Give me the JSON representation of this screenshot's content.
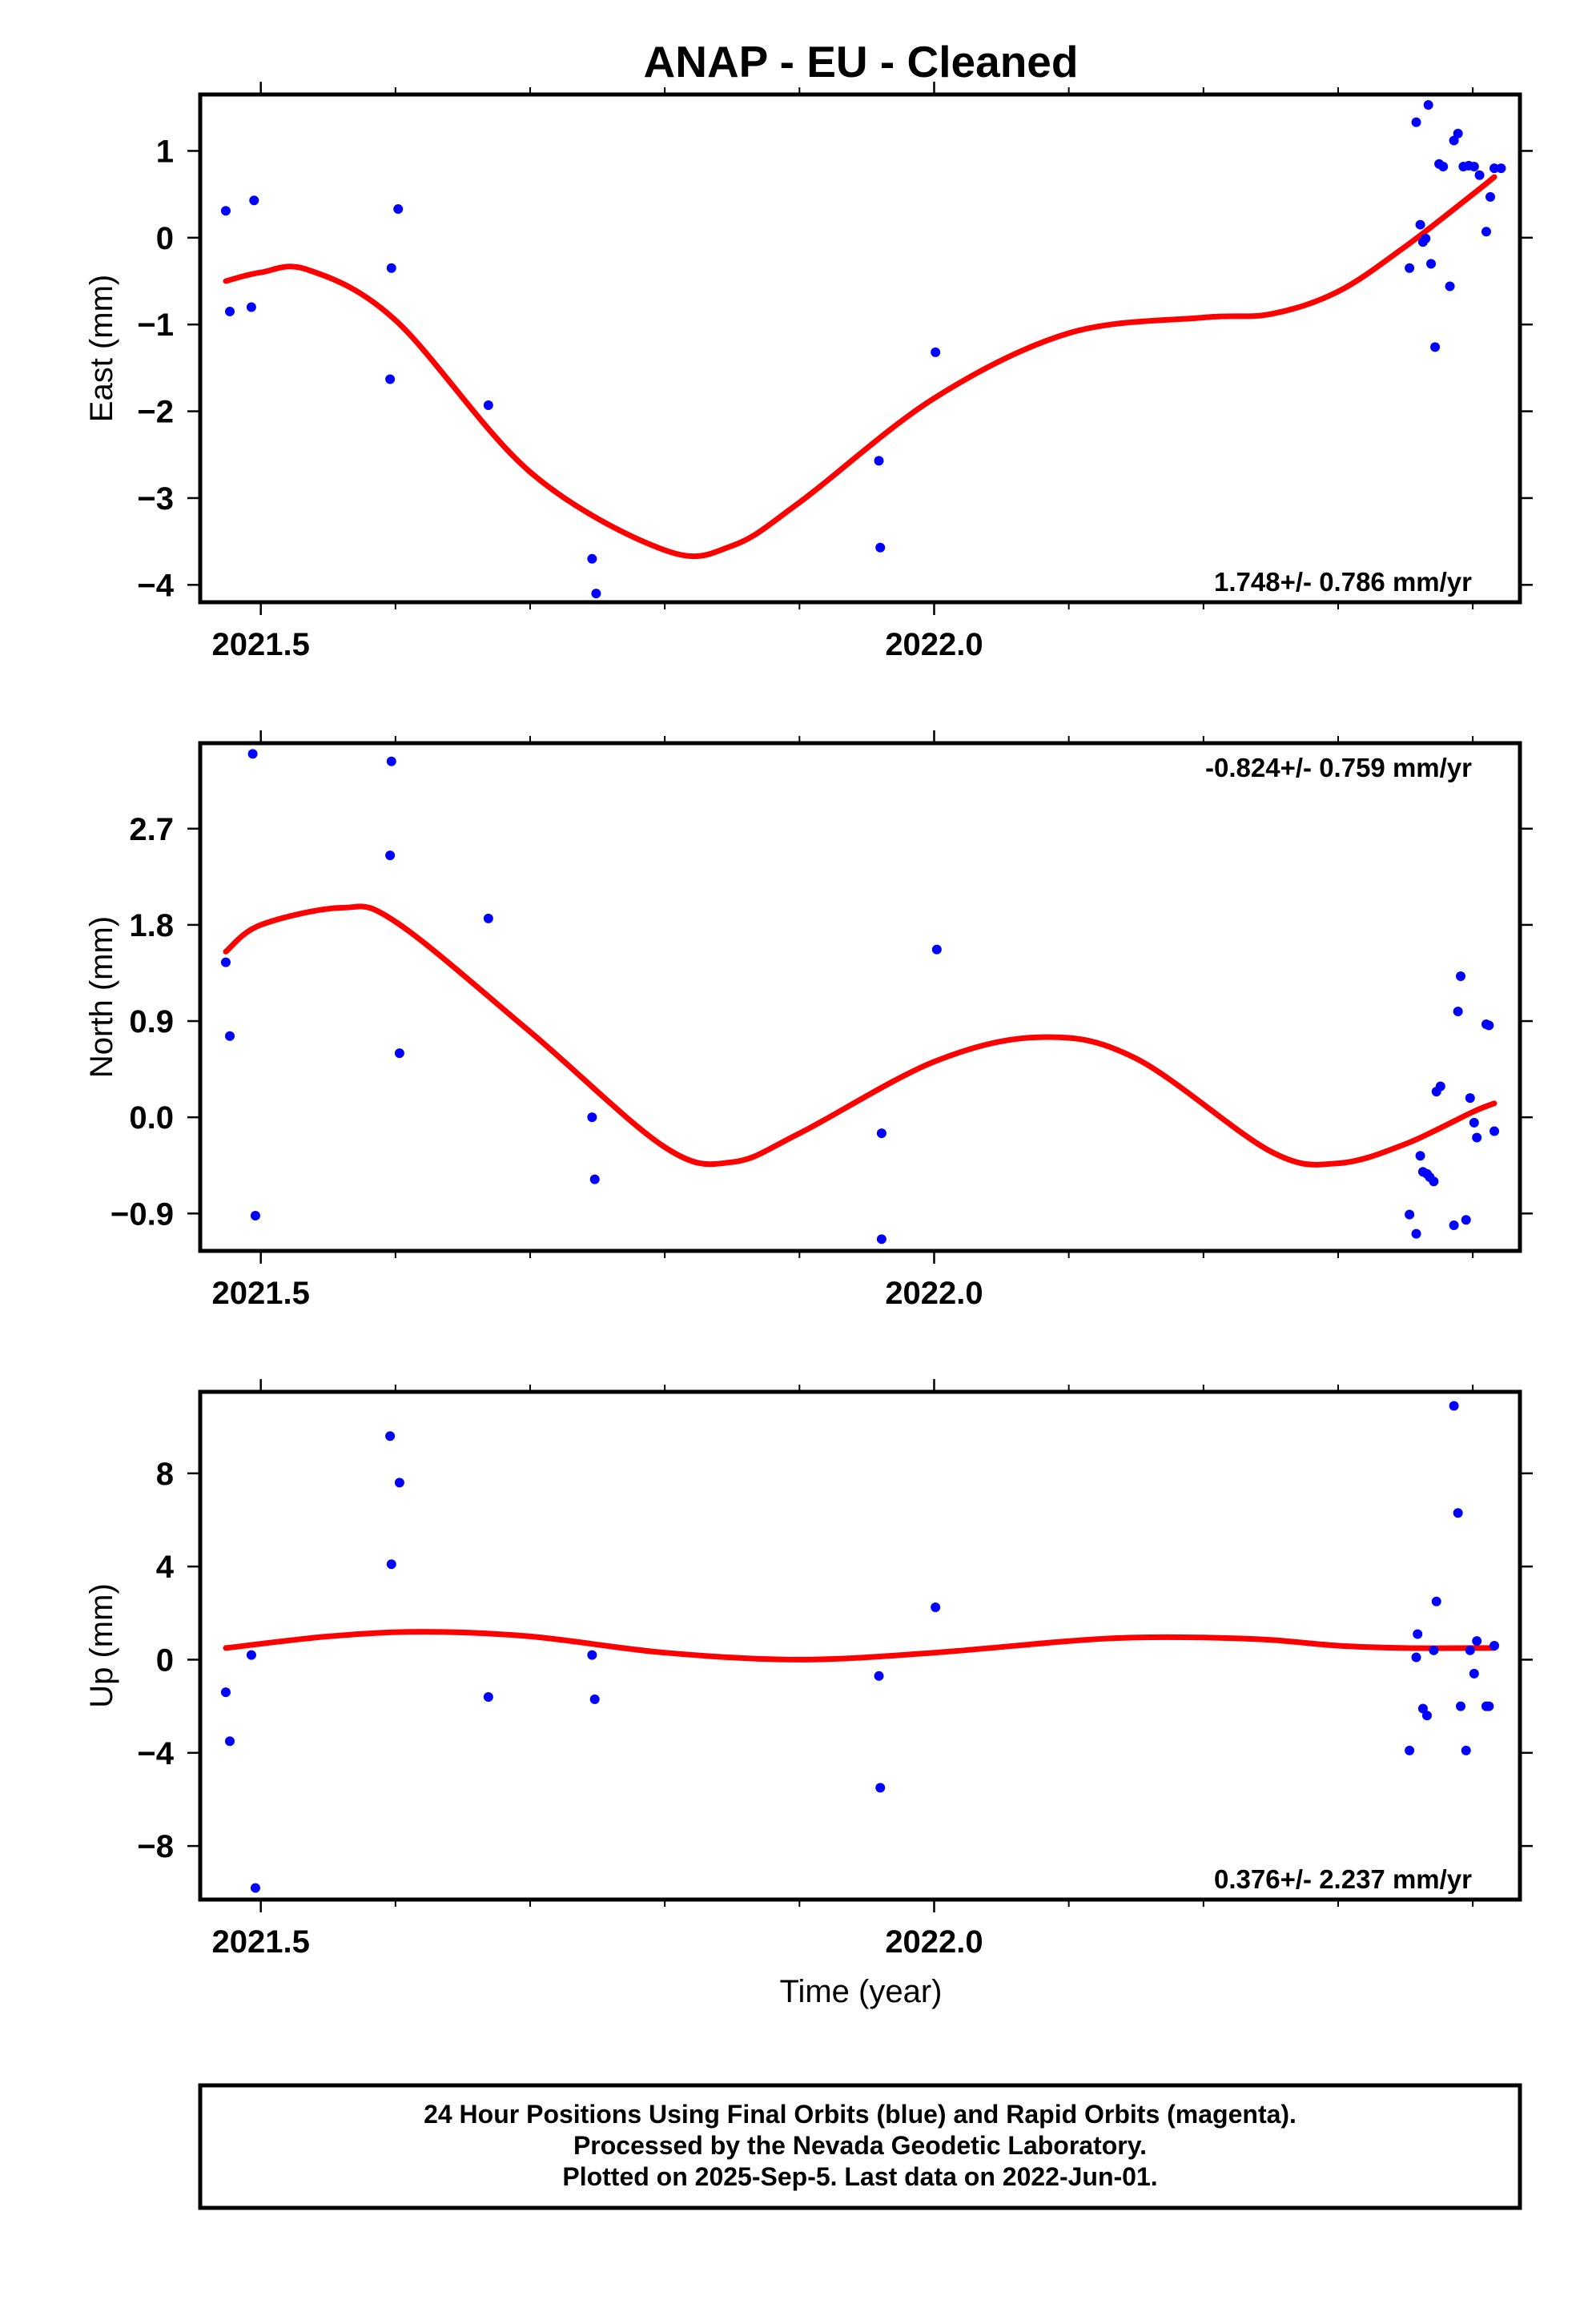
{
  "title": "ANAP  - EU - Cleaned",
  "xlabel": "Time (year)",
  "footer": [
    "24 Hour Positions Using Final Orbits (blue) and Rapid Orbits (magenta).",
    "Processed by the Nevada Geodetic Laboratory.",
    "Plotted on 2025-Sep-5. Last data on 2022-Jun-01."
  ],
  "colors": {
    "points": "#0000ff",
    "fit": "#ff0000",
    "frame": "#000000"
  },
  "chart_data": [
    {
      "type": "scatter",
      "ylabel": "East (mm)",
      "rate": "1.748+/- 0.786 mm/yr",
      "rate_position": "bottom-right",
      "xlim": [
        2021.455,
        2022.435
      ],
      "ylim": [
        -4.2,
        1.65
      ],
      "xticks": [
        2021.5,
        2022.0
      ],
      "xtick_labels": [
        "2021.5",
        "2022.0"
      ],
      "yticks": [
        1,
        0,
        -1,
        -2,
        -3,
        -4
      ],
      "ytick_labels": [
        "1",
        "0",
        "−1",
        "−2",
        "−3",
        "−4"
      ],
      "series": [
        {
          "kind": "points",
          "x": [
            2021.474,
            2021.477,
            2021.493,
            2021.495,
            2021.596,
            2021.597,
            2021.602,
            2021.669,
            2021.746,
            2021.749,
            2021.959,
            2021.96,
            2022.001,
            2022.353,
            2022.358,
            2022.361,
            2022.363,
            2022.365,
            2022.367,
            2022.369,
            2022.372,
            2022.375,
            2022.378,
            2022.383,
            2022.386,
            2022.389,
            2022.393,
            2022.397,
            2022.401,
            2022.405,
            2022.41,
            2022.413,
            2022.416,
            2022.421
          ],
          "y": [
            0.31,
            -0.85,
            -0.8,
            0.43,
            -1.63,
            -0.35,
            0.33,
            -1.93,
            -3.7,
            -4.1,
            -2.57,
            -3.57,
            -1.32,
            -0.35,
            1.33,
            0.15,
            -0.05,
            -0.01,
            1.53,
            -0.3,
            -1.26,
            0.85,
            0.82,
            -0.56,
            1.12,
            1.2,
            0.82,
            0.83,
            0.82,
            0.72,
            0.07,
            0.47,
            0.8,
            0.8
          ]
        },
        {
          "kind": "fit",
          "x": [
            2021.474,
            2021.5,
            2021.535,
            2021.6,
            2021.7,
            2021.8,
            2021.85,
            2021.9,
            2022.0,
            2022.1,
            2022.2,
            2022.25,
            2022.3,
            2022.35,
            2022.4,
            2022.416
          ],
          "y": [
            -0.5,
            -0.4,
            -0.37,
            -0.95,
            -2.7,
            -3.6,
            -3.55,
            -3.05,
            -1.85,
            -1.1,
            -0.92,
            -0.88,
            -0.62,
            -0.1,
            0.5,
            0.7
          ]
        }
      ]
    },
    {
      "type": "scatter",
      "ylabel": "North (mm)",
      "rate": "-0.824+/- 0.759 mm/yr",
      "rate_position": "top-right",
      "xlim": [
        2021.455,
        2022.435
      ],
      "ylim": [
        -1.25,
        3.5
      ],
      "xticks": [
        2021.5,
        2022.0
      ],
      "xtick_labels": [
        "2021.5",
        "2022.0"
      ],
      "yticks": [
        2.7,
        1.8,
        0.9,
        0.0,
        -0.9
      ],
      "ytick_labels": [
        "2.7",
        "1.8",
        "0.9",
        "0.0",
        "−0.9"
      ],
      "series": [
        {
          "kind": "points",
          "x": [
            2021.474,
            2021.477,
            2021.494,
            2021.496,
            2021.596,
            2021.597,
            2021.603,
            2021.669,
            2021.746,
            2021.748,
            2021.961,
            2021.961,
            2022.002,
            2022.353,
            2022.358,
            2022.361,
            2022.363,
            2022.366,
            2022.368,
            2022.371,
            2022.373,
            2022.376,
            2022.386,
            2022.389,
            2022.391,
            2022.395,
            2022.398,
            2022.401,
            2022.403,
            2022.41,
            2022.412,
            2022.416
          ],
          "y": [
            1.45,
            0.76,
            3.4,
            -0.92,
            2.45,
            3.33,
            0.6,
            1.86,
            0.0,
            -0.58,
            -0.15,
            -1.14,
            1.57,
            -0.91,
            -1.09,
            -0.36,
            -0.51,
            -0.53,
            -0.56,
            -0.6,
            0.24,
            0.29,
            -1.01,
            0.99,
            1.32,
            -0.96,
            0.18,
            -0.05,
            -0.19,
            0.87,
            0.86,
            -0.13
          ]
        },
        {
          "kind": "fit",
          "x": [
            2021.474,
            2021.5,
            2021.56,
            2021.6,
            2021.7,
            2021.8,
            2021.85,
            2021.9,
            2022.0,
            2022.08,
            2022.15,
            2022.25,
            2022.3,
            2022.35,
            2022.4,
            2022.416
          ],
          "y": [
            1.55,
            1.8,
            1.96,
            1.83,
            0.8,
            -0.28,
            -0.42,
            -0.15,
            0.52,
            0.75,
            0.55,
            -0.32,
            -0.43,
            -0.25,
            0.05,
            0.13
          ]
        }
      ]
    },
    {
      "type": "scatter",
      "ylabel": "Up (mm)",
      "rate": "0.376+/- 2.237 mm/yr",
      "rate_position": "bottom-right",
      "xlim": [
        2021.455,
        2022.435
      ],
      "ylim": [
        -10.3,
        11.5
      ],
      "xticks": [
        2021.5,
        2022.0
      ],
      "xtick_labels": [
        "2021.5",
        "2022.0"
      ],
      "yticks": [
        8,
        4,
        0,
        -4,
        -8
      ],
      "ytick_labels": [
        "8",
        "4",
        "0",
        "−4",
        "−8"
      ],
      "series": [
        {
          "kind": "points",
          "x": [
            2021.474,
            2021.477,
            2021.493,
            2021.496,
            2021.596,
            2021.597,
            2021.603,
            2021.669,
            2021.746,
            2021.748,
            2021.959,
            2021.96,
            2022.001,
            2022.353,
            2022.358,
            2022.359,
            2022.363,
            2022.366,
            2022.371,
            2022.373,
            2022.386,
            2022.389,
            2022.391,
            2022.395,
            2022.398,
            2022.401,
            2022.403,
            2022.41,
            2022.412,
            2022.416
          ],
          "y": [
            -1.4,
            -3.5,
            0.2,
            -9.8,
            9.6,
            4.1,
            7.6,
            -1.6,
            0.2,
            -1.7,
            -0.7,
            -5.5,
            2.25,
            -3.9,
            0.1,
            1.1,
            -2.1,
            -2.4,
            0.4,
            2.5,
            10.9,
            6.3,
            -2.0,
            -3.9,
            0.4,
            -0.6,
            0.8,
            -2.0,
            -2.0,
            0.6
          ]
        },
        {
          "kind": "fit",
          "x": [
            2021.474,
            2021.55,
            2021.62,
            2021.7,
            2021.8,
            2021.9,
            2022.0,
            2022.1,
            2022.15,
            2022.2,
            2022.25,
            2022.3,
            2022.35,
            2022.4,
            2022.416
          ],
          "y": [
            0.5,
            1.0,
            1.2,
            1.0,
            0.3,
            0.0,
            0.3,
            0.8,
            0.95,
            0.95,
            0.85,
            0.6,
            0.5,
            0.5,
            0.5
          ]
        }
      ]
    }
  ]
}
